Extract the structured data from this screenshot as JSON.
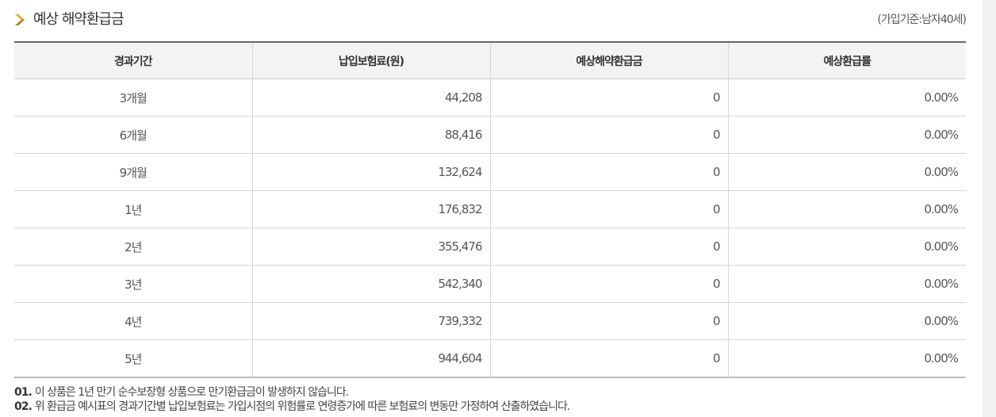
{
  "header": {
    "title": "예상 해약환급금",
    "basis": "(가입기준:남자40세)"
  },
  "table": {
    "columns": [
      "경과기간",
      "납입보험료(원)",
      "예상해약환급금",
      "예상환급률"
    ],
    "rows": [
      {
        "period": "3개월",
        "premium": "44,208",
        "refund": "0",
        "rate": "0.00%"
      },
      {
        "period": "6개월",
        "premium": "88,416",
        "refund": "0",
        "rate": "0.00%"
      },
      {
        "period": "9개월",
        "premium": "132,624",
        "refund": "0",
        "rate": "0.00%"
      },
      {
        "period": "1년",
        "premium": "176,832",
        "refund": "0",
        "rate": "0.00%"
      },
      {
        "period": "2년",
        "premium": "355,476",
        "refund": "0",
        "rate": "0.00%"
      },
      {
        "period": "3년",
        "premium": "542,340",
        "refund": "0",
        "rate": "0.00%"
      },
      {
        "period": "4년",
        "premium": "739,332",
        "refund": "0",
        "rate": "0.00%"
      },
      {
        "period": "5년",
        "premium": "944,604",
        "refund": "0",
        "rate": "0.00%"
      }
    ]
  },
  "notes": [
    {
      "num": "01.",
      "text": "이 상품은 1년 만기 순수보장형 상품으로 만기환급금이 발생하지 않습니다."
    },
    {
      "num": "02.",
      "text": "위 환급금 예시표의 경과기간별 납입보험료는 가입시점의 위험률로 연령증가에 따른 보험료의 변동만 가정하여 산출하였습니다."
    }
  ],
  "icons": {
    "title_icon": "chevron-right-icon",
    "accent_color": "#e8a018"
  }
}
